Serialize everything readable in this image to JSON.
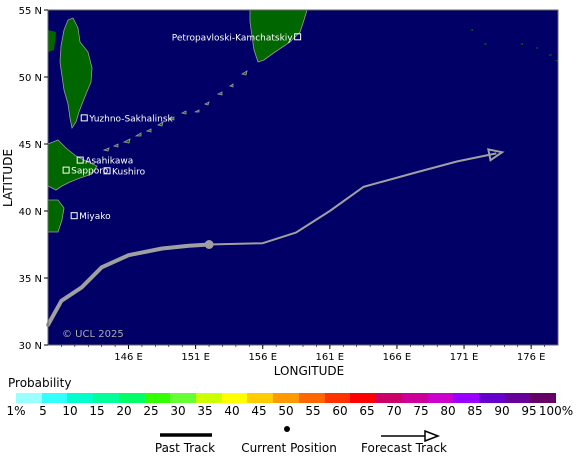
{
  "map": {
    "lat_labels": [
      "55 N",
      "50 N",
      "45 N",
      "40 N",
      "35 N",
      "30 N"
    ],
    "lon_labels": [
      "146 E",
      "151 E",
      "156 E",
      "161 E",
      "166 E",
      "171 E",
      "176 E"
    ],
    "ylabel": "LATITUDE",
    "xlabel": "LONGITUDE",
    "copyright": "© UCL 2025",
    "ocean_color": "#000066",
    "land_color": "#006600",
    "cities": [
      {
        "name": "Petropavloski-Kamchatskiy",
        "lon": 158.6,
        "lat": 53.0
      },
      {
        "name": "Yuzhno-Sakhalinsk",
        "lon": 142.7,
        "lat": 46.95
      },
      {
        "name": "Asahikawa",
        "lon": 142.4,
        "lat": 43.8
      },
      {
        "name": "Kushiro",
        "lon": 144.4,
        "lat": 43.0
      },
      {
        "name": "Sapporo",
        "lon": 141.35,
        "lat": 43.05
      },
      {
        "name": "Miyako",
        "lon": 141.95,
        "lat": 39.65
      }
    ],
    "past_track": [
      [
        140.0,
        31.5
      ],
      [
        141.0,
        33.3
      ],
      [
        142.5,
        34.3
      ],
      [
        144.0,
        35.8
      ],
      [
        146.0,
        36.7
      ],
      [
        148.5,
        37.2
      ],
      [
        150.5,
        37.4
      ],
      [
        152.0,
        37.5
      ]
    ],
    "current_position": {
      "lon": 152.0,
      "lat": 37.5
    },
    "forecast_track": [
      [
        152.0,
        37.5
      ],
      [
        156.0,
        37.6
      ],
      [
        158.5,
        38.4
      ],
      [
        161.0,
        40.0
      ],
      [
        163.5,
        41.8
      ],
      [
        167.5,
        42.9
      ],
      [
        170.5,
        43.7
      ],
      [
        173.4,
        44.3
      ]
    ],
    "track_color": "#a0a0a0"
  },
  "legend": {
    "title": "Probability",
    "labels": [
      "1%",
      "5",
      "10",
      "15",
      "20",
      "25",
      "30",
      "35",
      "40",
      "45",
      "50",
      "55",
      "60",
      "65",
      "70",
      "75",
      "80",
      "85",
      "90",
      "95",
      "100%"
    ],
    "colors": [
      "#99ffff",
      "#33ffff",
      "#00ffcc",
      "#00ff99",
      "#00ff66",
      "#33ff00",
      "#66ff33",
      "#ccff00",
      "#ffff00",
      "#ffcc00",
      "#ff9900",
      "#ff6600",
      "#ff3300",
      "#ff0000",
      "#cc0066",
      "#cc0099",
      "#cc00cc",
      "#9900ff",
      "#6600cc",
      "#660099",
      "#660066"
    ]
  },
  "key": {
    "past_track_label": "Past Track",
    "current_position_label": "Current Position",
    "forecast_track_label": "Forecast Track"
  }
}
